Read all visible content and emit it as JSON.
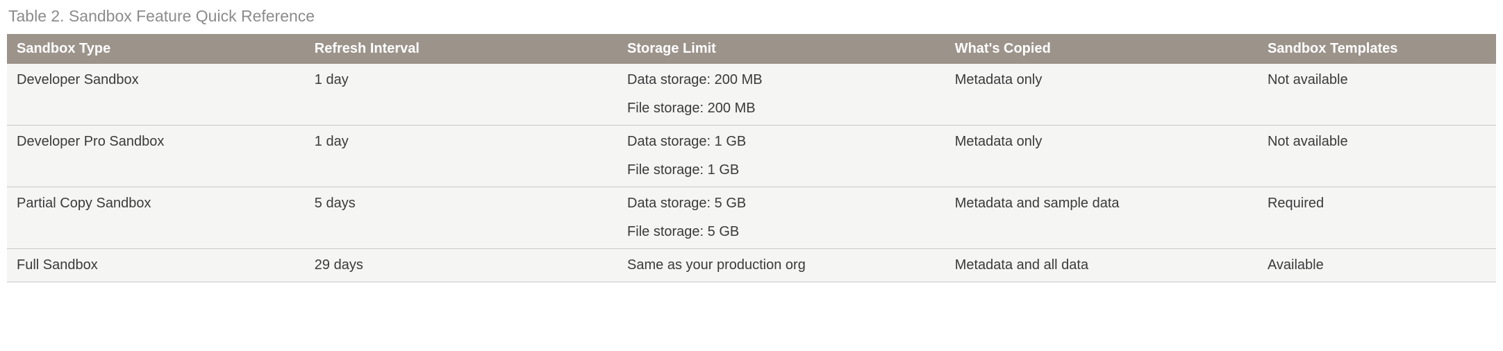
{
  "caption": "Table 2. Sandbox Feature Quick Reference",
  "columns": [
    "Sandbox Type",
    "Refresh Interval",
    "Storage Limit",
    "What's Copied",
    "Sandbox Templates"
  ],
  "rows": [
    {
      "type": "Developer Sandbox",
      "refresh": "1 day",
      "storage": [
        "Data storage: 200 MB",
        "File storage: 200 MB"
      ],
      "copied": "Metadata only",
      "templates": "Not available"
    },
    {
      "type": "Developer Pro Sandbox",
      "refresh": "1 day",
      "storage": [
        "Data storage: 1 GB",
        "File storage: 1 GB"
      ],
      "copied": "Metadata only",
      "templates": "Not available"
    },
    {
      "type": "Partial Copy Sandbox",
      "refresh": "5 days",
      "storage": [
        "Data storage: 5 GB",
        "File storage: 5 GB"
      ],
      "copied": "Metadata and sample data",
      "templates": "Required"
    },
    {
      "type": "Full Sandbox",
      "refresh": "29 days",
      "storage": [
        "Same as your production org"
      ],
      "copied": "Metadata and all data",
      "templates": "Available"
    }
  ],
  "styling": {
    "header_bg": "#9c938b",
    "header_text_color": "#ffffff",
    "body_bg": "#f5f5f3",
    "body_text_color": "#3a3a3a",
    "caption_color": "#8b8b8b",
    "border_color": "#c9c9c9",
    "caption_fontsize": 23,
    "header_fontsize": 20,
    "cell_fontsize": 20,
    "column_widths_pct": [
      20,
      21,
      22,
      21,
      16
    ]
  }
}
